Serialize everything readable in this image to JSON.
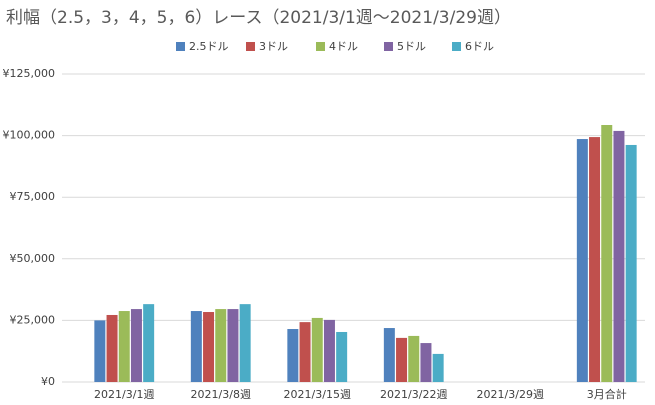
{
  "chart_data": {
    "type": "bar",
    "title": "利幅（2.5，3，4，5，6）レース（2021/3/1週～2021/3/29週）",
    "categories": [
      "2021/3/1週",
      "2021/3/8週",
      "2021/3/15週",
      "2021/3/22週",
      "2021/3/29週",
      "3月合計"
    ],
    "series": [
      {
        "name": "2.5ドル",
        "color": "#4f81bd",
        "values": [
          25000,
          28800,
          21500,
          21900,
          null,
          98600
        ]
      },
      {
        "name": "3ドル",
        "color": "#c0504d",
        "values": [
          27200,
          28400,
          24300,
          17900,
          null,
          99400
        ]
      },
      {
        "name": "4ドル",
        "color": "#9bbb59",
        "values": [
          28800,
          29600,
          26000,
          18700,
          null,
          104300
        ]
      },
      {
        "name": "5ドル",
        "color": "#8064a2",
        "values": [
          29600,
          29600,
          25200,
          15800,
          null,
          101900
        ]
      },
      {
        "name": "6ドル",
        "color": "#4bacc6",
        "values": [
          31600,
          31600,
          20300,
          11400,
          null,
          96200
        ]
      }
    ],
    "ylim": [
      0,
      125000
    ],
    "yticks": [
      {
        "value": 0,
        "label": "¥0"
      },
      {
        "value": 25000,
        "label": "¥25,000"
      },
      {
        "value": 50000,
        "label": "¥50,000"
      },
      {
        "value": 75000,
        "label": "¥75,000"
      },
      {
        "value": 100000,
        "label": "¥100,000"
      },
      {
        "value": 125000,
        "label": "¥125,000"
      }
    ],
    "grid": true,
    "legend": "top"
  }
}
